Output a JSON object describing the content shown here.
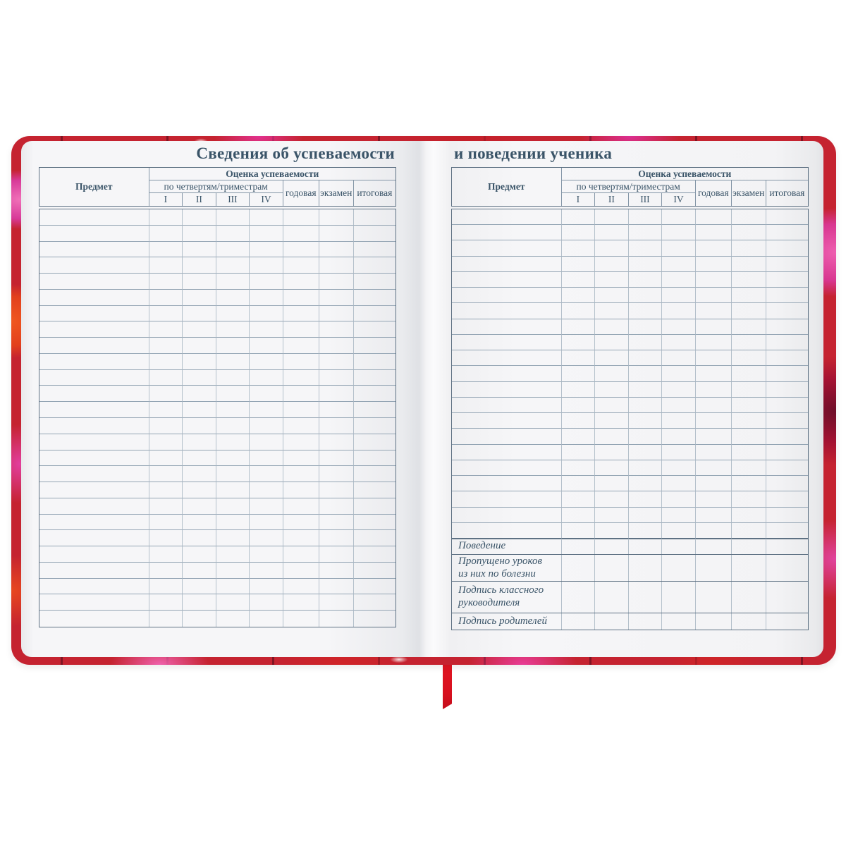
{
  "spread_title": {
    "left": "Сведения об успеваемости",
    "right": "и поведении ученика"
  },
  "table_header": {
    "subject": "Предмет",
    "grades_group": "Оценка успеваемости",
    "quarters_group": "по четвертям/триместрам",
    "quarters": [
      "I",
      "II",
      "III",
      "IV"
    ],
    "annual": "годовая",
    "exam": "экзамен",
    "final": "итоговая"
  },
  "left_table": {
    "body_rows": 26
  },
  "right_table": {
    "body_rows": 21
  },
  "summary_rows": [
    {
      "line1": "Поведение",
      "line2": ""
    },
    {
      "line1": "Пропущено уроков",
      "line2": "из них по болезни"
    },
    {
      "line1": "Подпись классного",
      "line2": "руководителя"
    },
    {
      "line1": "Подпись родителей",
      "line2": ""
    }
  ],
  "colors": {
    "ink": "#3a5468",
    "border_heavy": "#5e7183",
    "border_mid": "#8496a7",
    "border_mid2": "#94a5b4",
    "border_light": "#b4c0cb",
    "cover_red": "#d02428",
    "cover_orange": "#f0571f",
    "cover_magenta": "#e23e9e",
    "ribbon_red": "#e31723"
  }
}
